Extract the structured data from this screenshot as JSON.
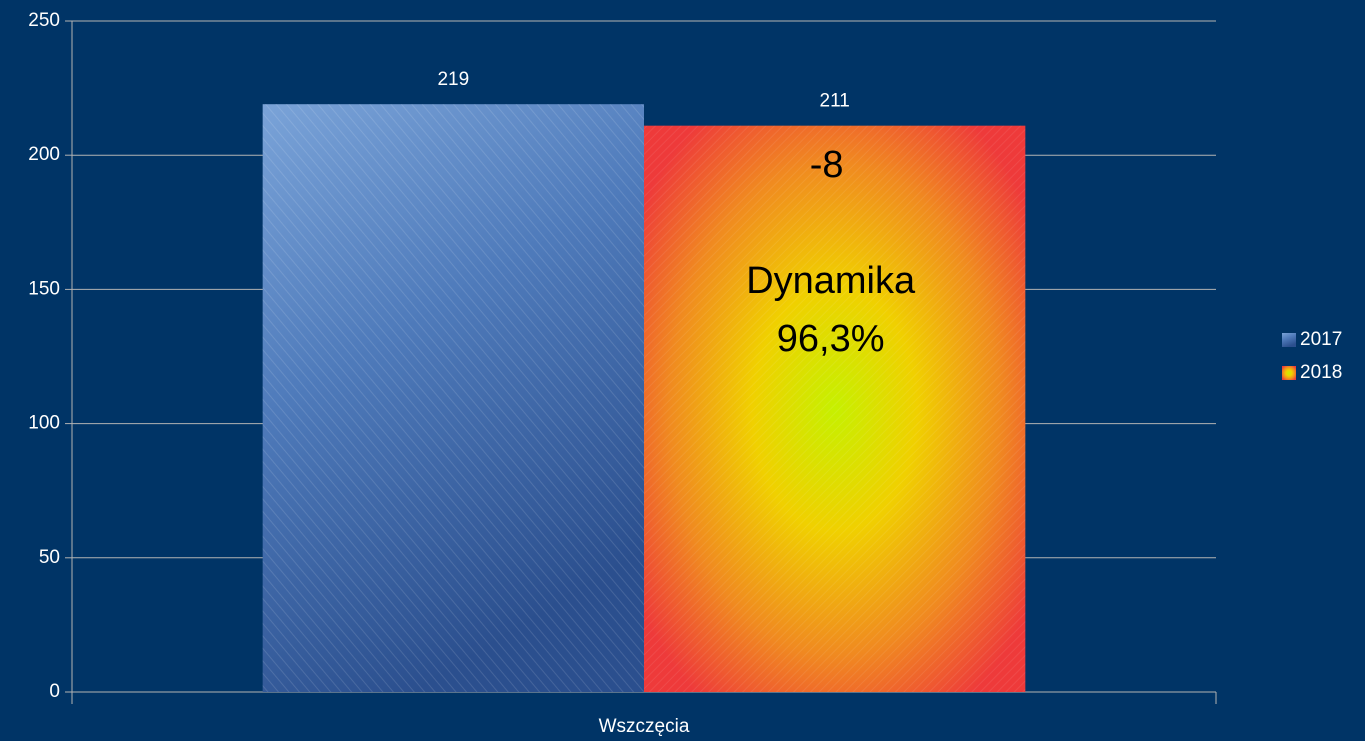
{
  "chart_data": {
    "type": "bar",
    "categories": [
      "Wszczęcia"
    ],
    "series": [
      {
        "name": "2017",
        "color": "#4f7bbb",
        "values": [
          219
        ]
      },
      {
        "name": "2018",
        "color": "#ee3a3a",
        "values": [
          211
        ]
      }
    ],
    "ylim": [
      0,
      250
    ],
    "yticks": [
      0,
      50,
      100,
      150,
      200,
      250
    ],
    "grid": true,
    "legend": "right",
    "annotations": [
      "-8",
      "Dynamika",
      "96,3%"
    ]
  }
}
